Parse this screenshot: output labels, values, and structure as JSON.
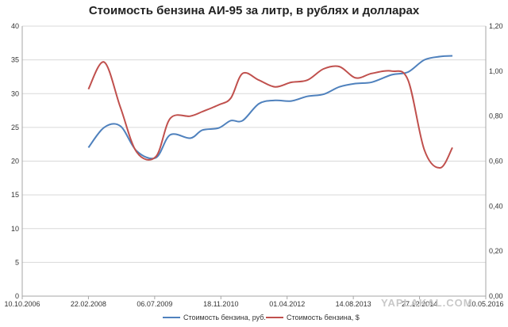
{
  "chart_data": {
    "type": "line",
    "title": "Стоимость бензина АИ-95 за литр, в рублях и долларах",
    "x_tick_labels": [
      "10.10.2006",
      "22.02.2008",
      "06.07.2009",
      "18.11.2010",
      "01.04.2012",
      "14.08.2013",
      "27.12.2014",
      "10.05.2016"
    ],
    "x_range": [
      "2006-10-10",
      "2016-05-10"
    ],
    "y_left": {
      "range": [
        0,
        40
      ],
      "step": 5,
      "tick_labels": [
        "0",
        "5",
        "10",
        "15",
        "20",
        "25",
        "30",
        "35",
        "40"
      ]
    },
    "y_right": {
      "range": [
        0,
        1.2
      ],
      "step": 0.2,
      "tick_labels": [
        "0,00",
        "0,20",
        "0,40",
        "0,60",
        "0,80",
        "1,00",
        "1,20"
      ]
    },
    "grid": "horizontal",
    "legend_position": "bottom",
    "series": [
      {
        "name": "Стоимость бензина, руб.",
        "axis": "left",
        "color": "#4f81bd",
        "x": [
          "2008-02-22",
          "2008-06-20",
          "2008-10-20",
          "2009-02-20",
          "2009-07-15",
          "2009-11-01",
          "2010-04-01",
          "2010-07-01",
          "2010-11-01",
          "2011-02-01",
          "2011-05-01",
          "2011-09-01",
          "2012-01-01",
          "2012-05-01",
          "2012-09-01",
          "2013-01-01",
          "2013-05-01",
          "2013-09-01",
          "2014-01-01",
          "2014-06-01",
          "2014-10-01",
          "2015-02-01",
          "2015-06-01",
          "2015-09-01"
        ],
        "y": [
          22.0,
          25.0,
          25.2,
          21.5,
          20.5,
          23.9,
          23.4,
          24.6,
          24.9,
          26.0,
          26.0,
          28.5,
          29.0,
          28.9,
          29.6,
          29.9,
          31.0,
          31.5,
          31.7,
          32.8,
          33.2,
          35.0,
          35.5,
          35.6
        ]
      },
      {
        "name": "Стоимость бензина, $",
        "axis": "right",
        "color": "#c0504d",
        "x": [
          "2008-02-22",
          "2008-06-20",
          "2008-10-20",
          "2009-02-20",
          "2009-07-15",
          "2009-11-01",
          "2010-04-01",
          "2010-07-01",
          "2010-11-01",
          "2011-02-01",
          "2011-05-01",
          "2011-09-01",
          "2012-01-01",
          "2012-05-01",
          "2012-09-01",
          "2013-01-01",
          "2013-05-01",
          "2013-09-01",
          "2014-01-01",
          "2014-06-01",
          "2014-10-01",
          "2015-02-01",
          "2015-06-01",
          "2015-09-01"
        ],
        "y": [
          0.92,
          1.04,
          0.84,
          0.64,
          0.62,
          0.79,
          0.8,
          0.82,
          0.85,
          0.88,
          0.99,
          0.96,
          0.93,
          0.95,
          0.96,
          1.01,
          1.02,
          0.97,
          0.99,
          1.0,
          0.96,
          0.65,
          0.57,
          0.66
        ]
      }
    ]
  },
  "watermark": "YAPLAKAL.COM"
}
